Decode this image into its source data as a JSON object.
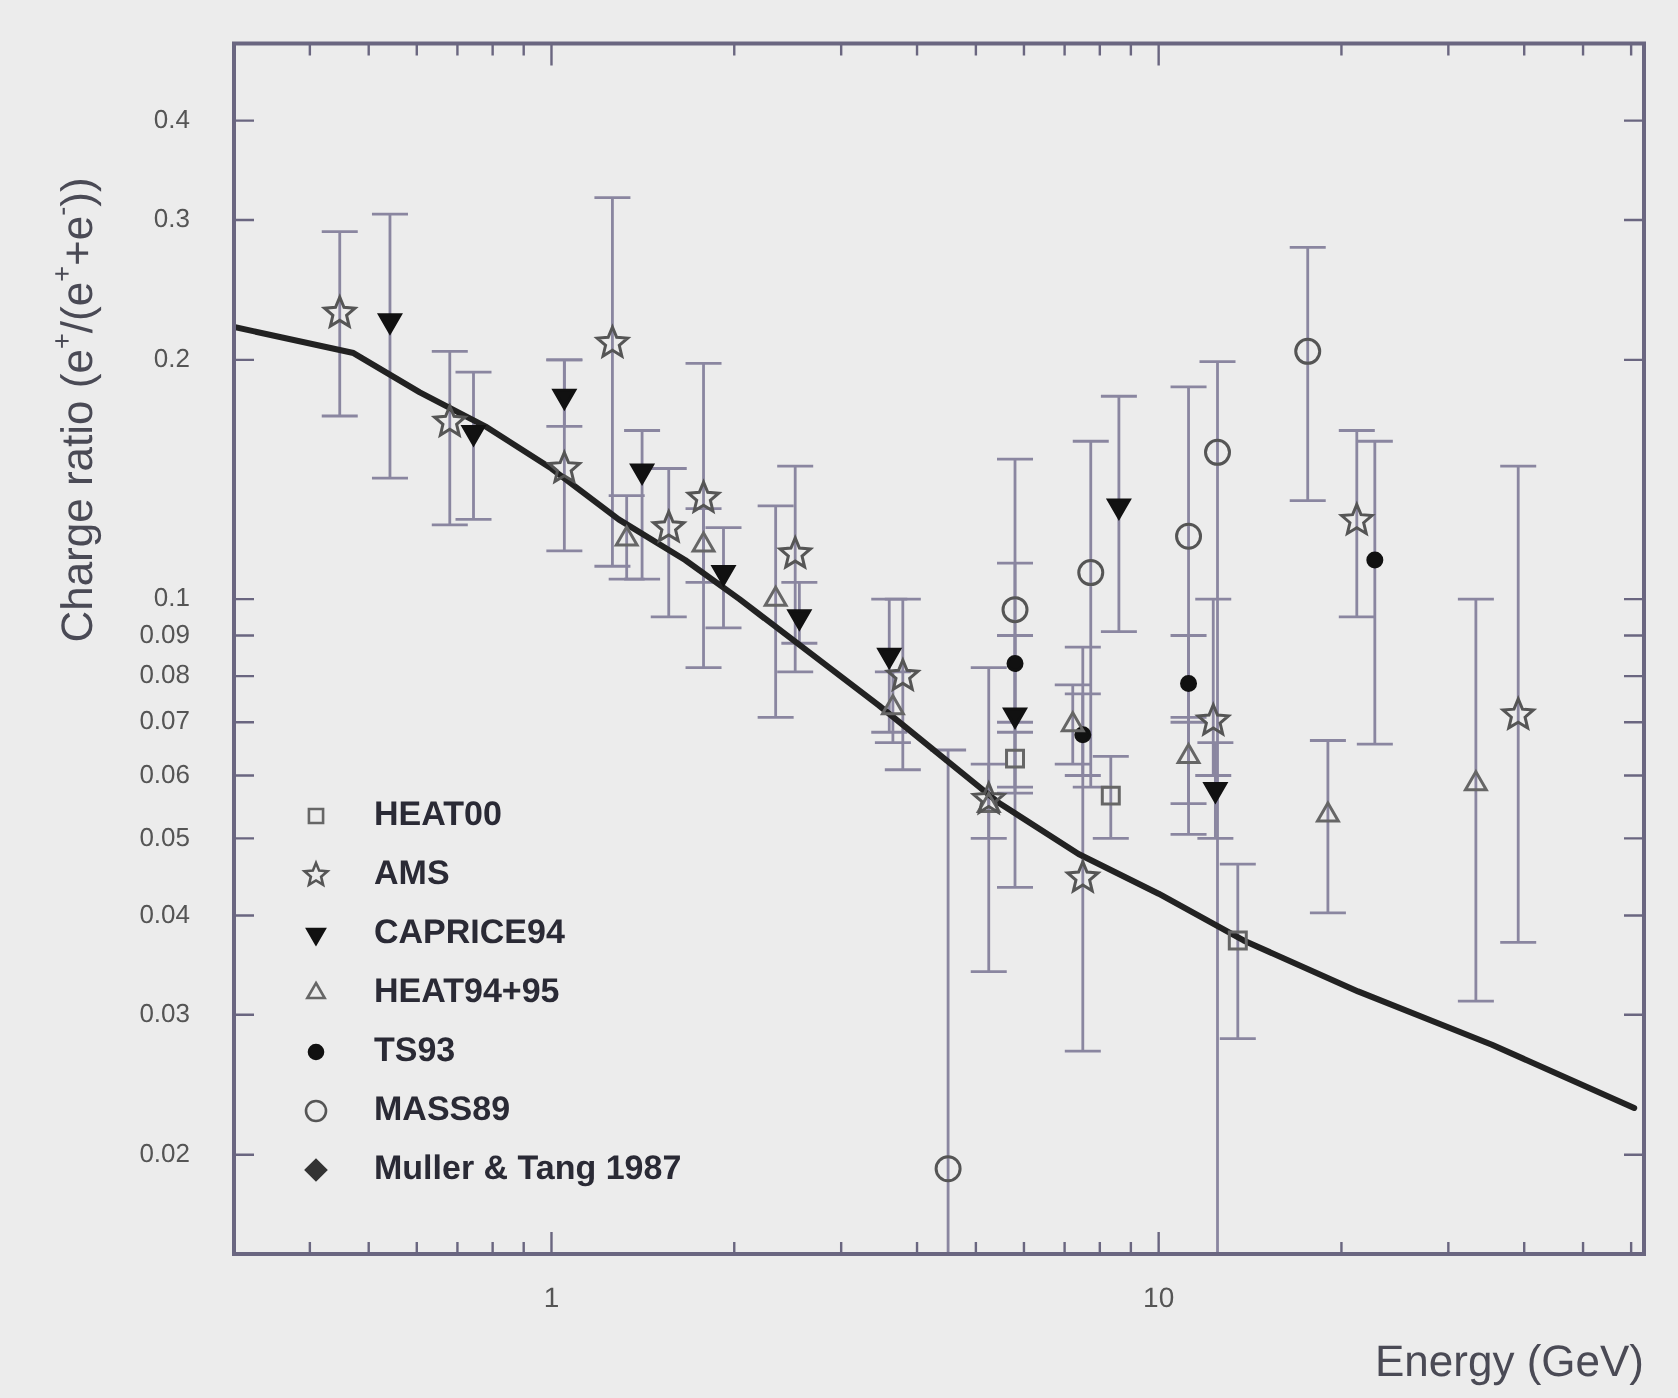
{
  "chart_data": {
    "type": "scatter",
    "xlabel": "Energy (GeV)",
    "ylabel": "Charge ratio (e$^{+}$/(e$^{+}$+e$^{-}$))",
    "log": "xy",
    "grid": false,
    "legend": "bottom left",
    "xlim": [
      0.3,
      63
    ],
    "ylim": [
      0.015,
      0.5
    ],
    "xticks": [
      {
        "value": 0.3,
        "label": null
      },
      {
        "value": 0.4,
        "label": null
      },
      {
        "value": 0.5,
        "label": null
      },
      {
        "value": 0.6,
        "label": null
      },
      {
        "value": 0.7,
        "label": null
      },
      {
        "value": 0.8,
        "label": null
      },
      {
        "value": 0.9,
        "label": null
      },
      1,
      {
        "value": 2,
        "label": null
      },
      {
        "value": 3,
        "label": null
      },
      {
        "value": 4,
        "label": null
      },
      {
        "value": 5,
        "label": null
      },
      {
        "value": 6,
        "label": null
      },
      {
        "value": 7,
        "label": null
      },
      {
        "value": 8,
        "label": null
      },
      {
        "value": 9,
        "label": null
      },
      10,
      {
        "value": 20,
        "label": null
      },
      {
        "value": 30,
        "label": null
      },
      {
        "value": 40,
        "label": null
      },
      {
        "value": 50,
        "label": null
      },
      {
        "value": 60,
        "label": null
      }
    ],
    "yticks": [
      0.02,
      0.03,
      0.04,
      0.05,
      0.06,
      0.07,
      0.08,
      0.09,
      0.1,
      0.2,
      0.3,
      0.4
    ],
    "series": [
      {
        "name": "HEAT00",
        "marker": "square",
        "color": "#666666",
        "x": [
          5.8,
          8.34,
          13.5
        ],
        "values": [
          0.063,
          0.0566,
          0.0372
        ],
        "errors": [
          [
            0.058,
            0.068
          ],
          [
            0.05,
            0.0634
          ],
          [
            0.028,
            0.0464
          ]
        ]
      },
      {
        "name": "AMS",
        "marker": "star",
        "color": "#555555",
        "x": [
          0.448,
          0.68,
          1.05,
          1.26,
          1.56,
          1.78,
          2.52,
          3.79,
          5.25,
          7.5,
          12.3,
          21.2,
          39.1
        ],
        "values": [
          0.229,
          0.167,
          0.146,
          0.21,
          0.123,
          0.134,
          0.114,
          0.08,
          0.056,
          0.0446,
          0.0703,
          0.1256,
          0.0715
        ],
        "errors": [
          [
            0.17,
            0.29
          ],
          [
            0.124,
            0.205
          ],
          [
            0.115,
            0.2
          ],
          [
            0.11,
            0.32
          ],
          [
            0.095,
            0.146
          ],
          [
            0.082,
            0.198
          ],
          [
            0.081,
            0.147
          ],
          [
            0.061,
            0.1
          ],
          [
            0.034,
            0.082
          ],
          [
            0.027,
            0.087
          ],
          [
            0.06,
            0.1
          ],
          [
            0.095,
            0.163
          ],
          [
            0.037,
            0.147
          ]
        ]
      },
      {
        "name": "CAPRICE94",
        "marker": "triangle-down",
        "color": "#111111",
        "x": [
          0.542,
          0.744,
          1.05,
          1.41,
          1.92,
          2.56,
          3.6,
          5.8,
          8.6,
          12.4
        ],
        "values": [
          0.224,
          0.162,
          0.18,
          0.145,
          0.108,
          0.095,
          0.085,
          0.0715,
          0.131,
          0.0576
        ],
        "errors": [
          [
            0.142,
            0.305
          ],
          [
            0.126,
            0.193
          ],
          [
            0.165,
            0.2
          ],
          [
            0.106,
            0.163
          ],
          [
            0.092,
            0.123
          ],
          [
            0.088,
            0.105
          ],
          [
            0.068,
            0.1
          ],
          [
            0.057,
            0.09
          ],
          [
            0.091,
            0.18
          ],
          [
            0.05,
            0.066
          ]
        ]
      },
      {
        "name": "HEAT94+95",
        "marker": "triangle",
        "color": "#666666",
        "x": [
          1.33,
          1.78,
          2.34,
          3.65,
          5.25,
          7.22,
          11.2,
          19.0,
          33.3
        ],
        "values": [
          0.119,
          0.117,
          0.1,
          0.073,
          0.055,
          0.0695,
          0.0634,
          0.0535,
          0.0586
        ],
        "errors": [
          [
            0.106,
            0.135
          ],
          [
            0.105,
            0.13
          ],
          [
            0.071,
            0.131
          ],
          [
            0.066,
            0.081
          ],
          [
            0.05,
            0.062
          ],
          [
            0.062,
            0.078
          ],
          [
            0.0553,
            0.071
          ],
          [
            0.0403,
            0.0664
          ],
          [
            0.0312,
            0.1
          ]
        ]
      },
      {
        "name": "TS93",
        "marker": "circle",
        "color": "#111111",
        "x": [
          5.8,
          7.5,
          11.2,
          22.7
        ],
        "values": [
          0.083,
          0.0675,
          0.0783,
          0.112
        ],
        "errors": [
          [
            0.07,
            0.111
          ],
          [
            0.06,
            0.076
          ],
          [
            0.07,
            0.09
          ],
          [
            0.0657,
            0.158
          ]
        ]
      },
      {
        "name": "MASS89",
        "marker": "circle",
        "color": "#555555",
        "x": [
          4.5,
          5.8,
          7.73,
          11.2,
          12.5,
          17.6
        ],
        "values": [
          0.0192,
          0.097,
          0.108,
          0.12,
          0.153,
          0.205
        ],
        "errors": [
          [
            0.015,
            0.0646
          ],
          [
            0.0434,
            0.15
          ],
          [
            0.058,
            0.158
          ],
          [
            0.0506,
            0.185
          ],
          [
            0.015,
            0.199
          ],
          [
            0.133,
            0.277
          ]
        ]
      },
      {
        "name": "Muller & Tang 1987",
        "marker": "diamond",
        "color": "#333333"
      },
      {
        "type": "line",
        "marker": "none",
        "line_style": "solid",
        "color": "#222222",
        "x": [
          0.3,
          0.472,
          0.607,
          0.778,
          1.0,
          1.29,
          1.66,
          2.04,
          3.46,
          5.46,
          7.38,
          10,
          13.8,
          21.3,
          35.4,
          60.7
        ],
        "values": [
          0.22,
          0.204,
          0.182,
          0.165,
          0.146,
          0.126,
          0.112,
          0.1,
          0.0735,
          0.0554,
          0.0478,
          0.0426,
          0.0372,
          0.0321,
          0.0275,
          0.0229
        ]
      }
    ]
  }
}
